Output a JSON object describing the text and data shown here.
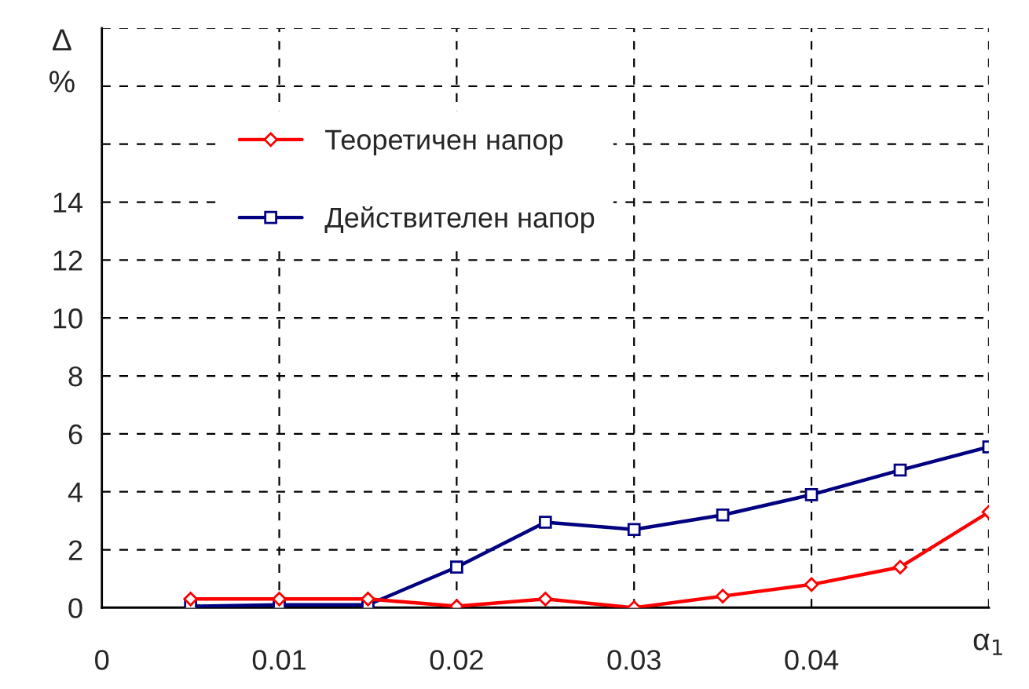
{
  "chart_data": {
    "type": "line",
    "x": [
      0.005,
      0.01,
      0.015,
      0.02,
      0.025,
      0.03,
      0.035,
      0.04,
      0.045,
      0.05
    ],
    "series": [
      {
        "name": "Теоретичен напор",
        "color": "#ff0000",
        "marker": "diamond",
        "values": [
          0.3,
          0.3,
          0.3,
          0.05,
          0.3,
          0.0,
          0.4,
          0.8,
          1.4,
          3.3
        ]
      },
      {
        "name": "Действителен напор",
        "color": "#000080",
        "marker": "square",
        "values": [
          0.05,
          0.1,
          0.1,
          1.4,
          2.95,
          2.7,
          3.2,
          3.9,
          4.75,
          5.55
        ]
      }
    ],
    "xlabel": "α$_{1}$",
    "ylabel": "Δ\n%",
    "xlim": [
      0,
      0.05
    ],
    "xticks": [
      0,
      0.01,
      0.02,
      0.03,
      0.04,
      {
        "value": 0.05,
        "label": null
      }
    ],
    "ylim": [
      0,
      20
    ],
    "yticks": [
      0,
      2,
      4,
      6,
      8,
      10,
      12,
      14,
      {
        "value": 16,
        "label": null
      },
      {
        "value": 18,
        "label": null
      },
      {
        "value": 20,
        "label": null
      }
    ],
    "grid": true,
    "legend": "top left",
    "line_style": "solid"
  }
}
